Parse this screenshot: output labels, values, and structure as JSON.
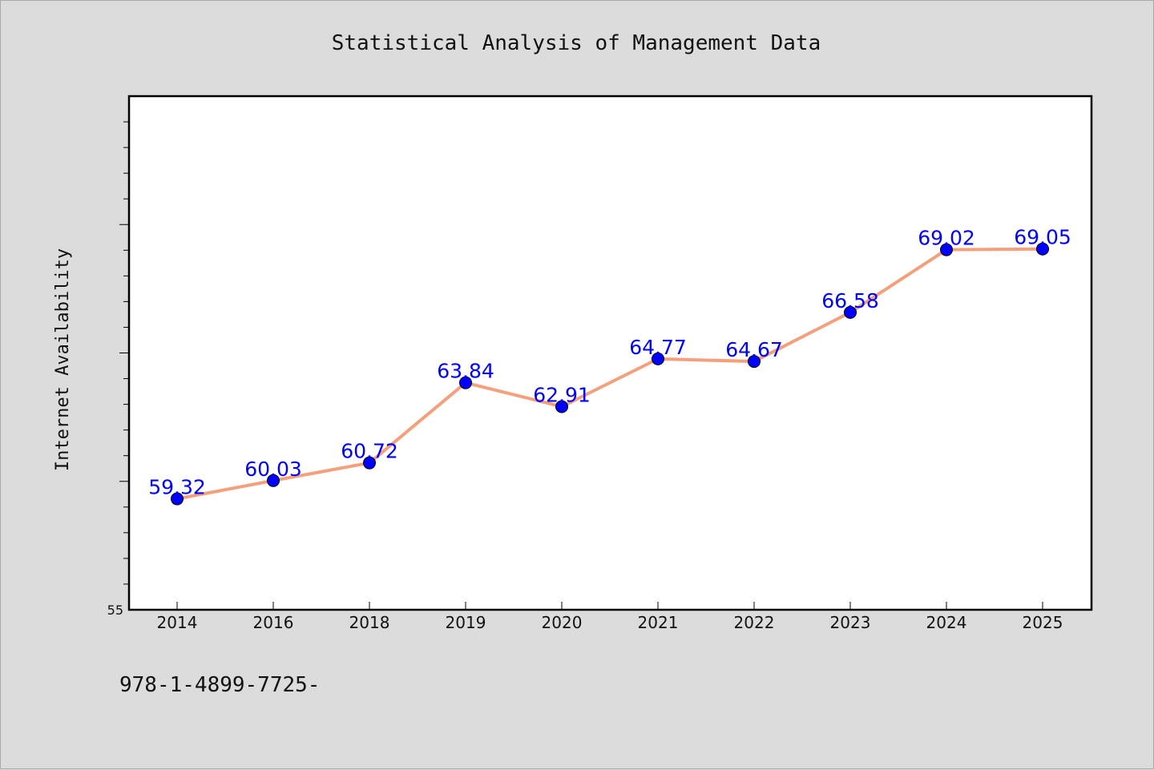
{
  "chart_data": {
    "type": "line",
    "title": "Statistical Analysis of Management Data",
    "ylabel": "Internet Availability",
    "xlabel": "",
    "categories": [
      "2014",
      "2016",
      "2018",
      "2019",
      "2020",
      "2021",
      "2022",
      "2023",
      "2024",
      "2025"
    ],
    "values": [
      59.32,
      60.03,
      60.72,
      63.84,
      62.91,
      64.77,
      64.67,
      66.58,
      69.02,
      69.05
    ],
    "data_labels": [
      "59.32",
      "60.03",
      "60.72",
      "63.84",
      "62.91",
      "64.77",
      "64.67",
      "66.58",
      "69.02",
      "69.05"
    ],
    "ylim": [
      55,
      75
    ],
    "y_tick_labels": [
      "55"
    ],
    "grid": false,
    "legend": "none",
    "line_color": "#f4a07c",
    "marker_color": "#0000ff",
    "label_color": "#0000ff"
  },
  "footer_text": "978-1-4899-7725-"
}
